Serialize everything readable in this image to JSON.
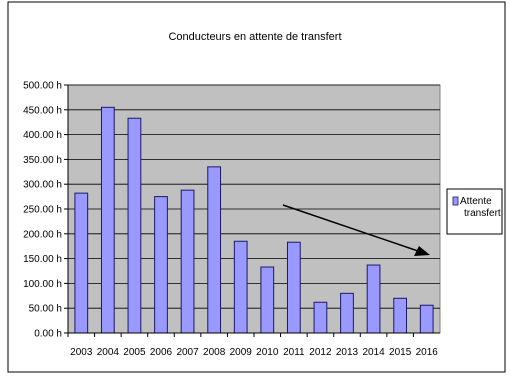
{
  "chart_data": {
    "type": "bar",
    "title": "Conducteurs en attente de transfert",
    "xlabel": "",
    "ylabel": "",
    "categories": [
      "2003",
      "2004",
      "2005",
      "2006",
      "2007",
      "2008",
      "2009",
      "2010",
      "2011",
      "2012",
      "2013",
      "2014",
      "2015",
      "2016"
    ],
    "series": [
      {
        "name": "Attente transfert",
        "values": [
          282,
          455,
          433,
          275,
          288,
          335,
          185,
          133,
          183,
          62,
          80,
          137,
          70,
          56
        ]
      }
    ],
    "ylim": [
      0,
      500
    ],
    "y_ticks": [
      "0.00 h",
      "50.00 h",
      "100.00 h",
      "150.00 h",
      "200.00 h",
      "250.00 h",
      "300.00 h",
      "350.00 h",
      "400.00 h",
      "450.00 h",
      "500.00 h"
    ],
    "grid": true,
    "legend_position": "right",
    "colors": {
      "bar_fill": "#9999ff",
      "bar_stroke": "#1a1a66",
      "plot_bg": "#c0c0c0",
      "grid": "#000000"
    },
    "annotation": "downward-arrow"
  }
}
